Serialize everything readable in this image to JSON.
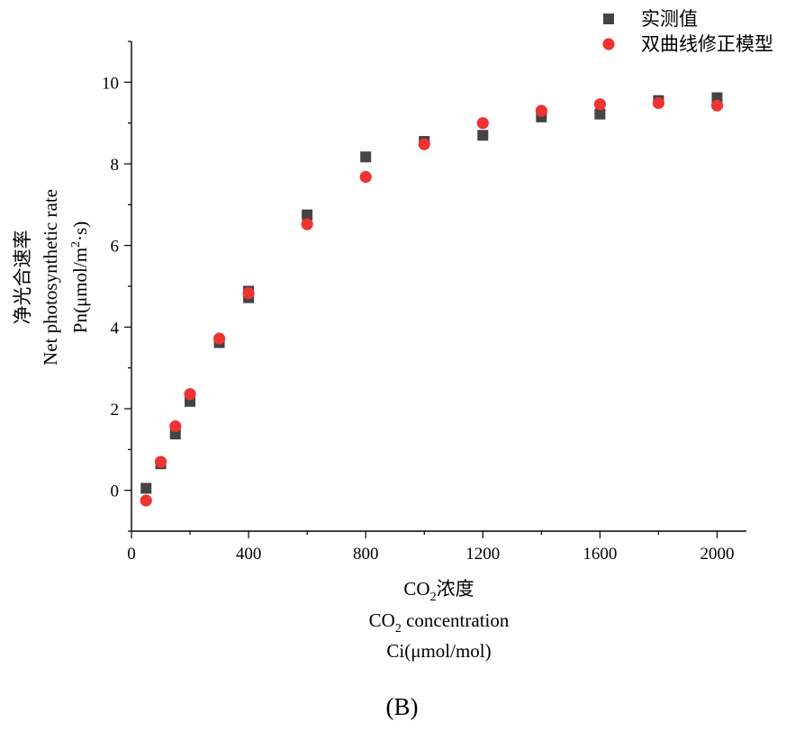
{
  "chart_data": {
    "type": "scatter",
    "xlabel_lines": [
      "CO₂浓度",
      "CO₂ concentration",
      "Ci(μmol/mol)"
    ],
    "ylabel_lines": [
      "净光合速率",
      "Net photosynthetic rate",
      "Pn(μmol/m²·s)"
    ],
    "xlim": [
      0,
      2100
    ],
    "ylim": [
      -1,
      11
    ],
    "x_ticks": [
      0,
      400,
      800,
      1200,
      1600,
      2000
    ],
    "y_ticks": [
      0,
      2,
      4,
      6,
      8,
      10
    ],
    "grid": false,
    "legend_position": "top-right",
    "series": [
      {
        "name": "实测值",
        "marker": "square",
        "color": "#444444",
        "points": [
          {
            "x": 50,
            "y": 0.05
          },
          {
            "x": 100,
            "y": 0.65
          },
          {
            "x": 150,
            "y": 1.38
          },
          {
            "x": 200,
            "y": 2.18
          },
          {
            "x": 300,
            "y": 3.62
          },
          {
            "x": 400,
            "y": 4.72
          },
          {
            "x": 400,
            "y": 4.88
          },
          {
            "x": 600,
            "y": 6.75
          },
          {
            "x": 800,
            "y": 8.17
          },
          {
            "x": 1000,
            "y": 8.55
          },
          {
            "x": 1200,
            "y": 8.7
          },
          {
            "x": 1400,
            "y": 9.15
          },
          {
            "x": 1600,
            "y": 9.22
          },
          {
            "x": 1800,
            "y": 9.55
          },
          {
            "x": 2000,
            "y": 9.62
          }
        ]
      },
      {
        "name": "双曲线修正模型",
        "marker": "circle",
        "color": "#ee3333",
        "points": [
          {
            "x": 50,
            "y": -0.25
          },
          {
            "x": 100,
            "y": 0.7
          },
          {
            "x": 150,
            "y": 1.57
          },
          {
            "x": 200,
            "y": 2.36
          },
          {
            "x": 300,
            "y": 3.72
          },
          {
            "x": 400,
            "y": 4.83
          },
          {
            "x": 600,
            "y": 6.52
          },
          {
            "x": 800,
            "y": 7.68
          },
          {
            "x": 1000,
            "y": 8.48
          },
          {
            "x": 1200,
            "y": 9.0
          },
          {
            "x": 1400,
            "y": 9.3
          },
          {
            "x": 1600,
            "y": 9.46
          },
          {
            "x": 1800,
            "y": 9.49
          },
          {
            "x": 2000,
            "y": 9.43
          }
        ]
      }
    ]
  },
  "panel_label": "(B)"
}
